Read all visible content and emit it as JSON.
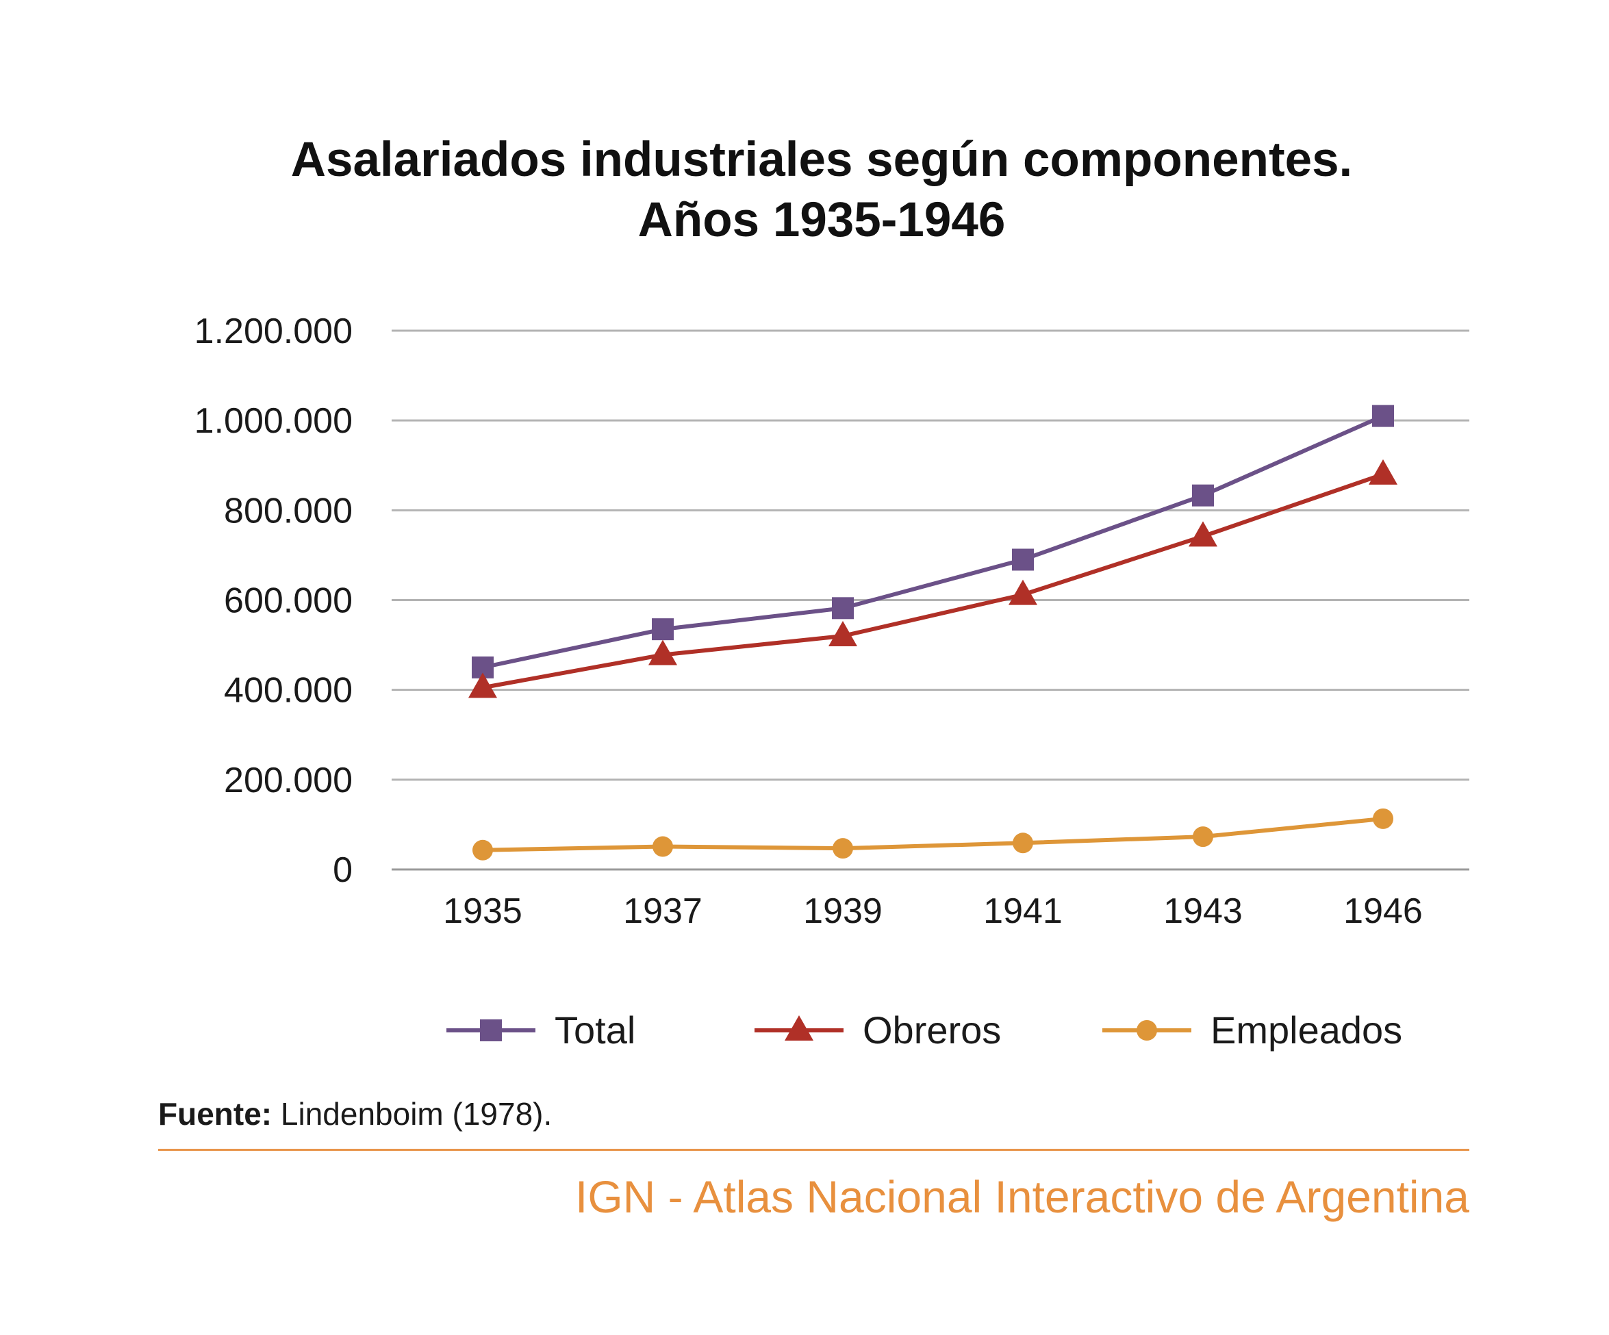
{
  "chart_data": {
    "type": "line",
    "title": "Asalariados industriales según componentes.",
    "subtitle": "Años 1935-1946",
    "categories": [
      "1935",
      "1937",
      "1939",
      "1941",
      "1943",
      "1946"
    ],
    "ylim": [
      0,
      1200000
    ],
    "yticks": [
      "0",
      "200.000",
      "400.000",
      "600.000",
      "800.000",
      "1.000.000",
      "1.200.000"
    ],
    "ytick_values": [
      0,
      200000,
      400000,
      600000,
      800000,
      1000000,
      1200000
    ],
    "grid": true,
    "legend_position": "bottom",
    "series": [
      {
        "name": "Total",
        "color": "#6b5188",
        "marker": "square",
        "values": [
          450000,
          535000,
          582000,
          690000,
          833000,
          1010000
        ]
      },
      {
        "name": "Obreros",
        "color": "#b03027",
        "marker": "triangle",
        "values": [
          405000,
          478000,
          520000,
          612000,
          742000,
          880000
        ]
      },
      {
        "name": "Empleados",
        "color": "#de9638",
        "marker": "circle",
        "values": [
          43000,
          51000,
          47000,
          59000,
          73000,
          113000
        ]
      }
    ]
  },
  "source": {
    "label": "Fuente:",
    "text": " Lindenboim (1978)."
  },
  "credit": "IGN - Atlas Nacional Interactivo de Argentina"
}
